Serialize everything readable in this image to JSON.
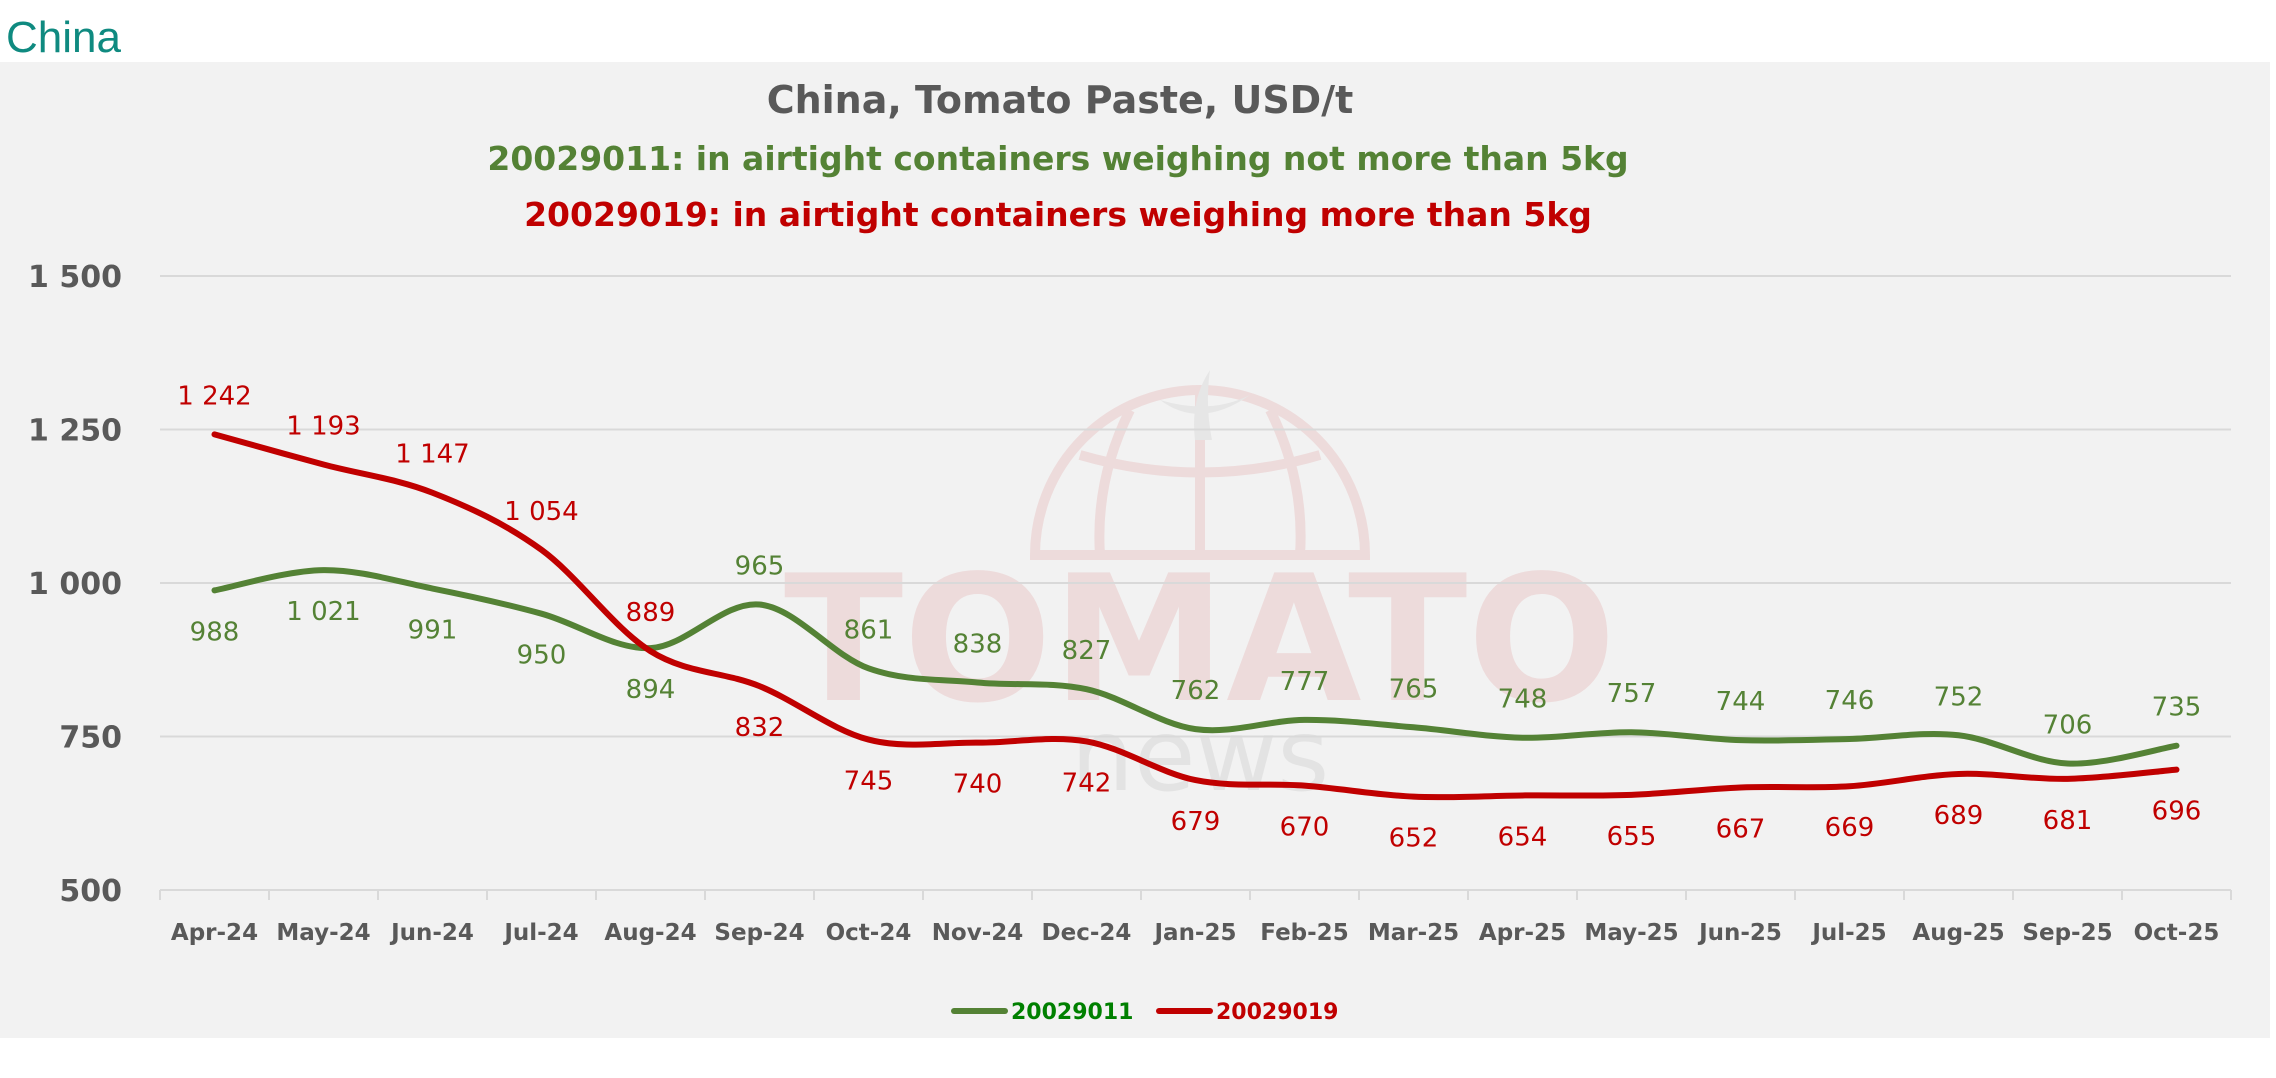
{
  "header": {
    "title": "China"
  },
  "watermark": {
    "brand": "TOMATO",
    "sub": "news"
  },
  "colors": {
    "green": "#548235",
    "red": "#c00000",
    "legend_green_text": "#008000",
    "title_gray": "#595959",
    "header_teal": "#0f8a80"
  },
  "chart_data": {
    "type": "line",
    "title": "China, Tomato Paste, USD/t",
    "subtitles": [
      "20029011: in airtight containers weighing not more than 5kg",
      "20029019: in airtight containers weighing more than 5kg"
    ],
    "xlabel": "",
    "ylabel": "",
    "ylim": [
      500,
      1500
    ],
    "yticks": [
      500,
      750,
      1000,
      1250,
      1500
    ],
    "ytick_labels": [
      "500",
      "750",
      "1 000",
      "1 250",
      "1 500"
    ],
    "grid": true,
    "legend_position": "bottom",
    "categories": [
      "Apr-24",
      "May-24",
      "Jun-24",
      "Jul-24",
      "Aug-24",
      "Sep-24",
      "Oct-24",
      "Nov-24",
      "Dec-24",
      "Jan-25",
      "Feb-25",
      "Mar-25",
      "Apr-25",
      "May-25",
      "Jun-25",
      "Jul-25",
      "Aug-25",
      "Sep-25",
      "Oct-25"
    ],
    "series": [
      {
        "name": "20029011",
        "color": "#548235",
        "values": [
          988,
          1021,
          991,
          950,
          894,
          965,
          861,
          838,
          827,
          762,
          777,
          765,
          748,
          757,
          744,
          746,
          752,
          706,
          735
        ],
        "labels": [
          "988",
          "1 021",
          "991",
          "950",
          "894",
          "965",
          "861",
          "838",
          "827",
          "762",
          "777",
          "765",
          "748",
          "757",
          "744",
          "746",
          "752",
          "706",
          "735"
        ]
      },
      {
        "name": "20029019",
        "color": "#c00000",
        "values": [
          1242,
          1193,
          1147,
          1054,
          889,
          832,
          745,
          740,
          742,
          679,
          670,
          652,
          654,
          655,
          667,
          669,
          689,
          681,
          696
        ],
        "labels": [
          "1 242",
          "1 193",
          "1 147",
          "1 054",
          "889",
          "832",
          "745",
          "740",
          "742",
          "679",
          "670",
          "652",
          "654",
          "655",
          "667",
          "669",
          "689",
          "681",
          "696"
        ]
      }
    ]
  }
}
